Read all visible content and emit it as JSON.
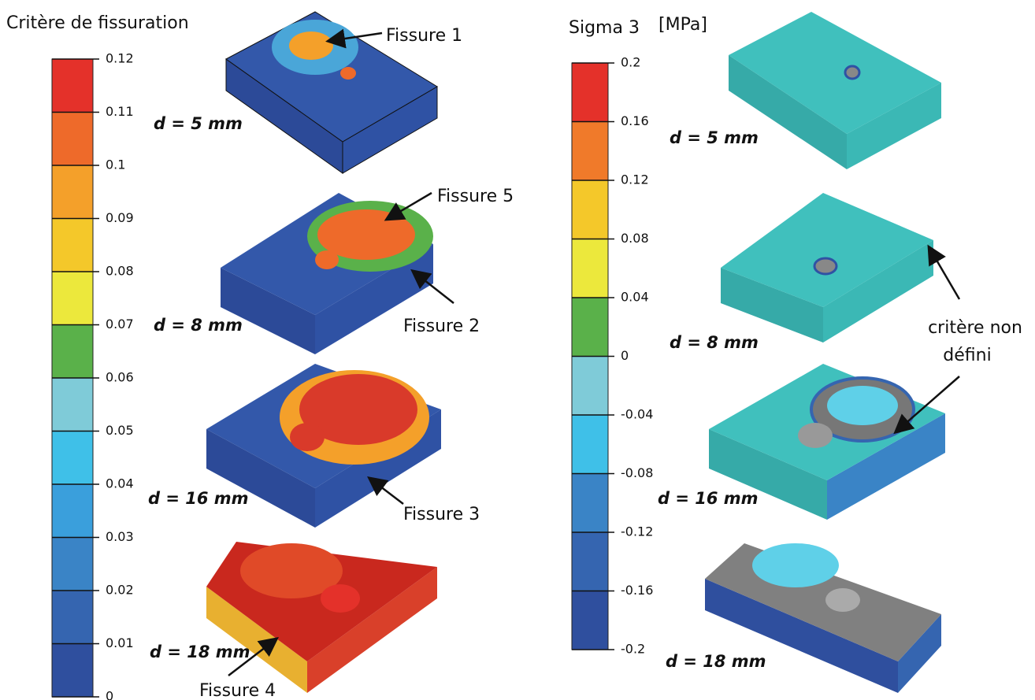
{
  "left_panel": {
    "title": "Critère de fissuration",
    "colorbar": {
      "lim": [
        0,
        0.12
      ],
      "ticks": [
        0,
        0.01,
        0.02,
        0.03,
        0.04,
        0.05,
        0.06,
        0.07,
        0.08,
        0.09,
        0.1,
        0.11,
        0.12
      ],
      "colors": [
        "#2f4f9e",
        "#3565b0",
        "#3a84c6",
        "#3a9fdc",
        "#3fc0e8",
        "#7fcbd8",
        "#5ab14a",
        "#ece83c",
        "#f4c82a",
        "#f4a02a",
        "#ee6a2a",
        "#e4312a"
      ]
    },
    "snapshots": [
      "d = 5 mm",
      "d = 8 mm",
      "d = 16 mm",
      "d = 18 mm"
    ],
    "annotations": [
      "Fissure 1",
      "Fissure 5",
      "Fissure 2",
      "Fissure 3",
      "Fissure 4"
    ]
  },
  "right_panel": {
    "title": "Sigma 3",
    "unit": "[MPa]",
    "colorbar": {
      "lim": [
        -0.2,
        0.2
      ],
      "ticks": [
        -0.2,
        -0.16,
        -0.12,
        -0.08,
        -0.04,
        0,
        0.04,
        0.08,
        0.12,
        0.16,
        0.2
      ],
      "colors": [
        "#2f4f9e",
        "#3565b0",
        "#3a84c6",
        "#3fc0e8",
        "#7fcbd8",
        "#5ab14a",
        "#ece83c",
        "#f4c82a",
        "#f07a2a",
        "#e4312a"
      ]
    },
    "snapshots": [
      "d = 5 mm",
      "d = 8 mm",
      "d = 16 mm",
      "d = 18 mm"
    ],
    "annotation_lines": [
      "critère non",
      "défini"
    ]
  }
}
